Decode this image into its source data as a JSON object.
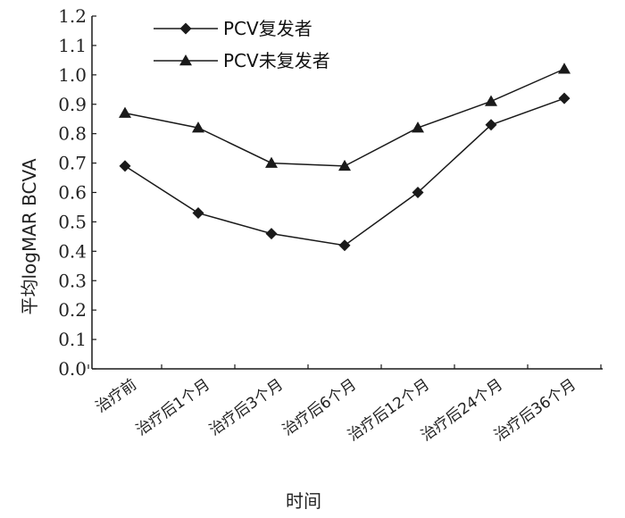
{
  "chart_data": {
    "type": "line",
    "categories": [
      "治疗前",
      "治疗后1个月",
      "治疗后3个月",
      "治疗后6个月",
      "治疗后12个月",
      "治疗后24个月",
      "治疗后36个月"
    ],
    "series": [
      {
        "name": "PCV复发者",
        "marker": "diamond",
        "values": [
          0.69,
          0.53,
          0.46,
          0.42,
          0.6,
          0.83,
          0.92
        ]
      },
      {
        "name": "PCV未复发者",
        "marker": "triangle",
        "values": [
          0.87,
          0.82,
          0.7,
          0.69,
          0.82,
          0.91,
          1.02
        ]
      }
    ],
    "xlabel": "时间",
    "ylabel": "平均logMAR BCVA",
    "ylim": [
      0.0,
      1.2
    ],
    "yticks": [
      "0.0",
      "0.1",
      "0.2",
      "0.3",
      "0.4",
      "0.5",
      "0.6",
      "0.7",
      "0.8",
      "0.9",
      "1.0",
      "1.1",
      "1.2"
    ],
    "grid": false,
    "legend_position": "top-left",
    "line_color": "#1a1a1a"
  }
}
